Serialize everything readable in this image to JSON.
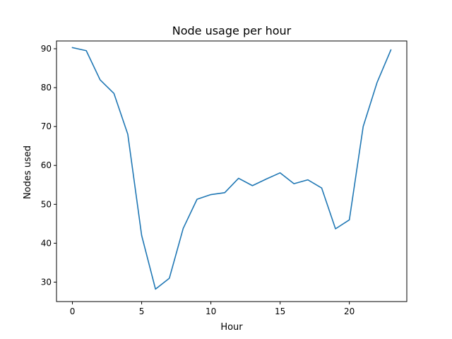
{
  "chart_data": {
    "type": "line",
    "title": "Node usage per hour",
    "xlabel": "Hour",
    "ylabel": "Nodes used",
    "xlim": [
      -1.15,
      24.15
    ],
    "ylim": [
      25,
      92
    ],
    "xticks": [
      0,
      5,
      10,
      15,
      20
    ],
    "yticks": [
      30,
      40,
      50,
      60,
      70,
      80,
      90
    ],
    "grid": false,
    "legend": "none",
    "colors": {
      "line": "#1f77b4",
      "axes": "#000000"
    },
    "series": [
      {
        "x": [
          0,
          1,
          2,
          3,
          4,
          5,
          6,
          7,
          8,
          9,
          10,
          11,
          12,
          13,
          14,
          15,
          16,
          17,
          18,
          19,
          20,
          21,
          22,
          23
        ],
        "values": [
          90.3,
          89.5,
          82.0,
          78.5,
          68.0,
          42.0,
          28.2,
          31.0,
          43.8,
          51.3,
          52.5,
          53.0,
          56.7,
          54.8,
          56.5,
          58.1,
          55.3,
          56.3,
          54.2,
          43.7,
          46.0,
          70.0,
          81.3,
          89.7
        ]
      }
    ]
  }
}
